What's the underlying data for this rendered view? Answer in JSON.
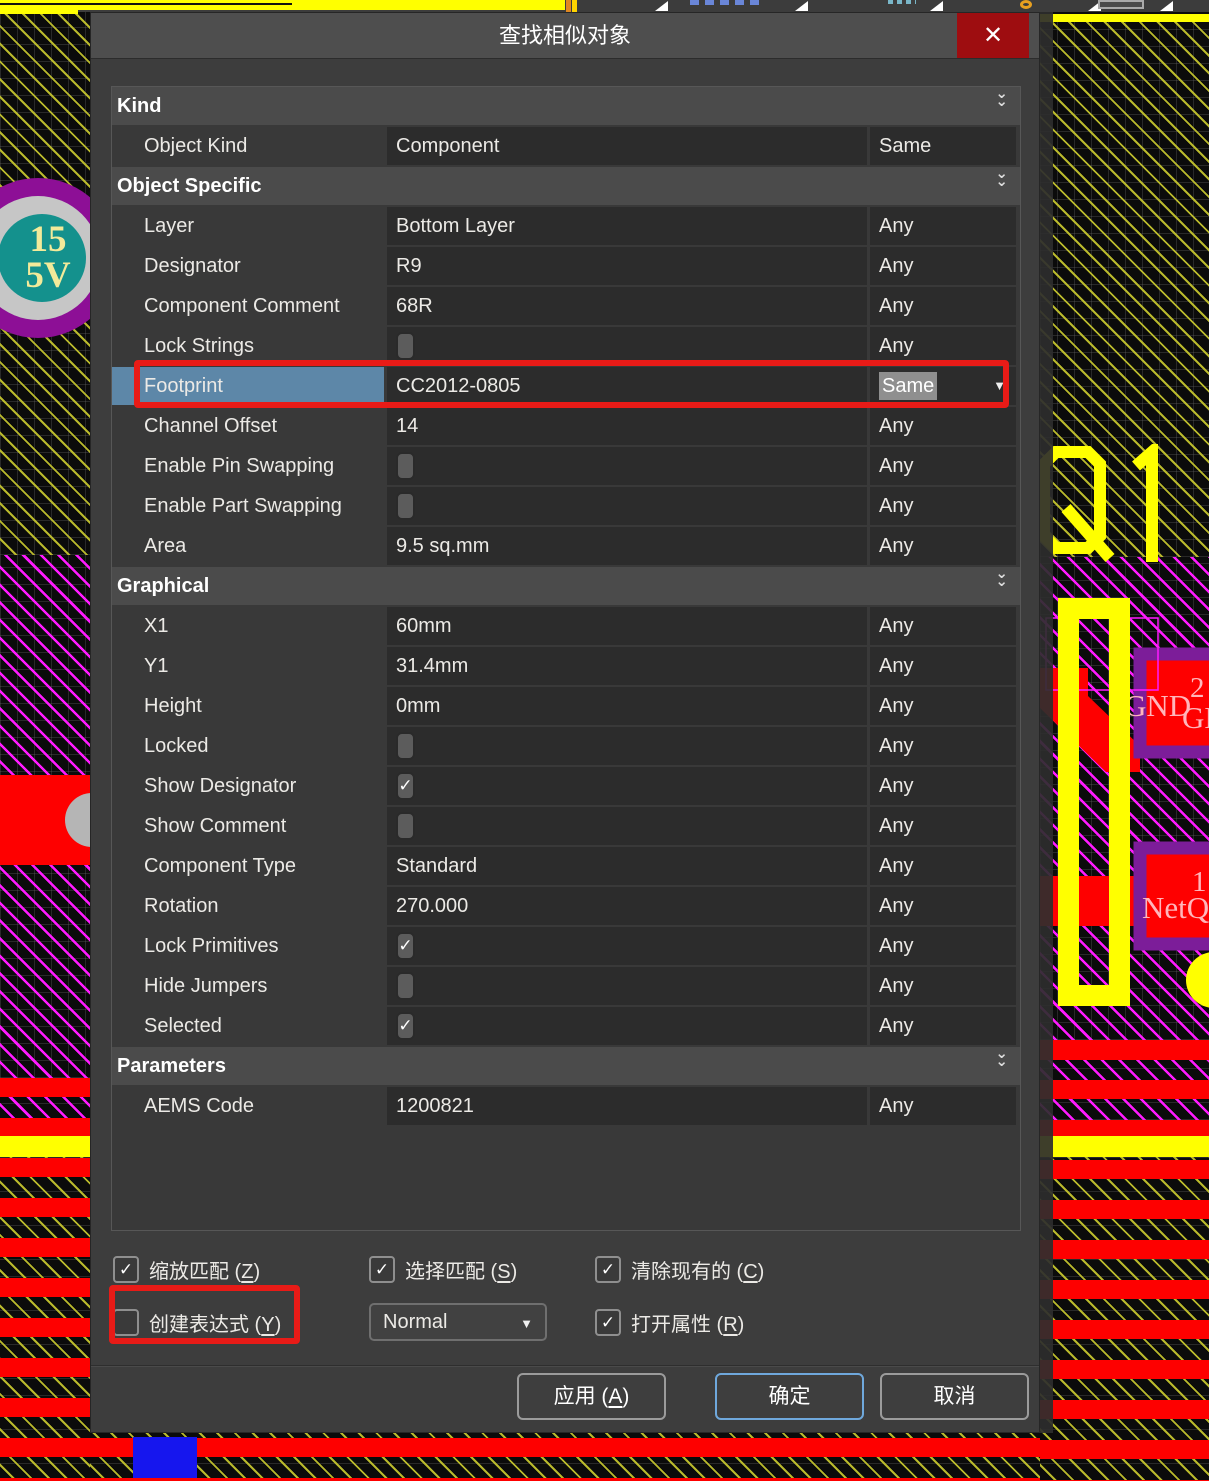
{
  "dialog": {
    "title": "查找相似对象",
    "close_glyph": "✕",
    "sections": [
      {
        "label": "Kind",
        "rows": [
          {
            "label": "Object Kind",
            "type": "text",
            "value": "Component",
            "criteria": "Same"
          }
        ]
      },
      {
        "label": "Object Specific",
        "rows": [
          {
            "label": "Layer",
            "type": "text",
            "value": "Bottom Layer",
            "criteria": "Any"
          },
          {
            "label": "Designator",
            "type": "text",
            "value": "R9",
            "criteria": "Any"
          },
          {
            "label": "Component Comment",
            "type": "text",
            "value": "68R",
            "criteria": "Any"
          },
          {
            "label": "Lock Strings",
            "type": "checkbox",
            "checked": false,
            "criteria": "Any"
          },
          {
            "label": "Footprint",
            "type": "text",
            "value": "CC2012-0805",
            "criteria": "Same",
            "highlighted": true,
            "criteria_selected": true,
            "dropdown": true
          },
          {
            "label": "Channel Offset",
            "type": "text",
            "value": "14",
            "criteria": "Any"
          },
          {
            "label": "Enable Pin Swapping",
            "type": "checkbox",
            "checked": false,
            "criteria": "Any"
          },
          {
            "label": "Enable Part Swapping",
            "type": "checkbox",
            "checked": false,
            "criteria": "Any"
          },
          {
            "label": "Area",
            "type": "text",
            "value": "9.5 sq.mm",
            "criteria": "Any"
          }
        ]
      },
      {
        "label": "Graphical",
        "rows": [
          {
            "label": "X1",
            "type": "text",
            "value": "60mm",
            "criteria": "Any"
          },
          {
            "label": "Y1",
            "type": "text",
            "value": "31.4mm",
            "criteria": "Any"
          },
          {
            "label": "Height",
            "type": "text",
            "value": "0mm",
            "criteria": "Any"
          },
          {
            "label": "Locked",
            "type": "checkbox",
            "checked": false,
            "criteria": "Any"
          },
          {
            "label": "Show Designator",
            "type": "checkbox",
            "checked": true,
            "criteria": "Any"
          },
          {
            "label": "Show Comment",
            "type": "checkbox",
            "checked": false,
            "criteria": "Any"
          },
          {
            "label": "Component Type",
            "type": "text",
            "value": "Standard",
            "criteria": "Any"
          },
          {
            "label": "Rotation",
            "type": "text",
            "value": "270.000",
            "criteria": "Any"
          },
          {
            "label": "Lock Primitives",
            "type": "checkbox",
            "checked": true,
            "criteria": "Any"
          },
          {
            "label": "Hide Jumpers",
            "type": "checkbox",
            "checked": false,
            "criteria": "Any"
          },
          {
            "label": "Selected",
            "type": "checkbox",
            "checked": true,
            "criteria": "Any"
          }
        ]
      },
      {
        "label": "Parameters",
        "rows": [
          {
            "label": "AEMS Code",
            "type": "text",
            "value": "1200821",
            "criteria": "Any"
          }
        ]
      }
    ],
    "options": {
      "zoom_match": {
        "label": "缩放匹配",
        "key": "Z",
        "checked": true
      },
      "select_match": {
        "label": "选择匹配",
        "key": "S",
        "checked": true
      },
      "clear_existing": {
        "label": "清除现有的",
        "key": "C",
        "checked": true
      },
      "create_expression": {
        "label": "创建表达式",
        "key": "Y",
        "checked": false
      },
      "mode_select": {
        "value": "Normal"
      },
      "open_properties": {
        "label": "打开属性",
        "key": "R",
        "checked": true
      }
    },
    "buttons": {
      "apply": {
        "label": "应用",
        "key": "A"
      },
      "ok": {
        "label": "确定"
      },
      "cancel": {
        "label": "取消"
      }
    }
  },
  "pcb": {
    "via_label_line1": "15",
    "via_label_line2": "5V",
    "component_designator": "Q1",
    "pad_gnd_number": "2",
    "pad_gnd_net": "GND",
    "pad_gnd_net_clipped": "GN",
    "pad_net_number": "1",
    "pad_net_name": "NetQ"
  },
  "colors": {
    "annotation_red": "#e81b17",
    "footprint_label_highlight": "#5d87a8",
    "same_selection_bg": "#8f8f8f",
    "ok_button_border": "#6fa8dc",
    "close_button_bg": "#9e0d10",
    "pcb_silk_yellow": "#ffff00",
    "pcb_copper_red": "#fe0000",
    "pcb_hatch_magenta": "#ff1aff",
    "pcb_via_teal": "#14918d",
    "pcb_pad_border_purple": "#7c1d99"
  }
}
